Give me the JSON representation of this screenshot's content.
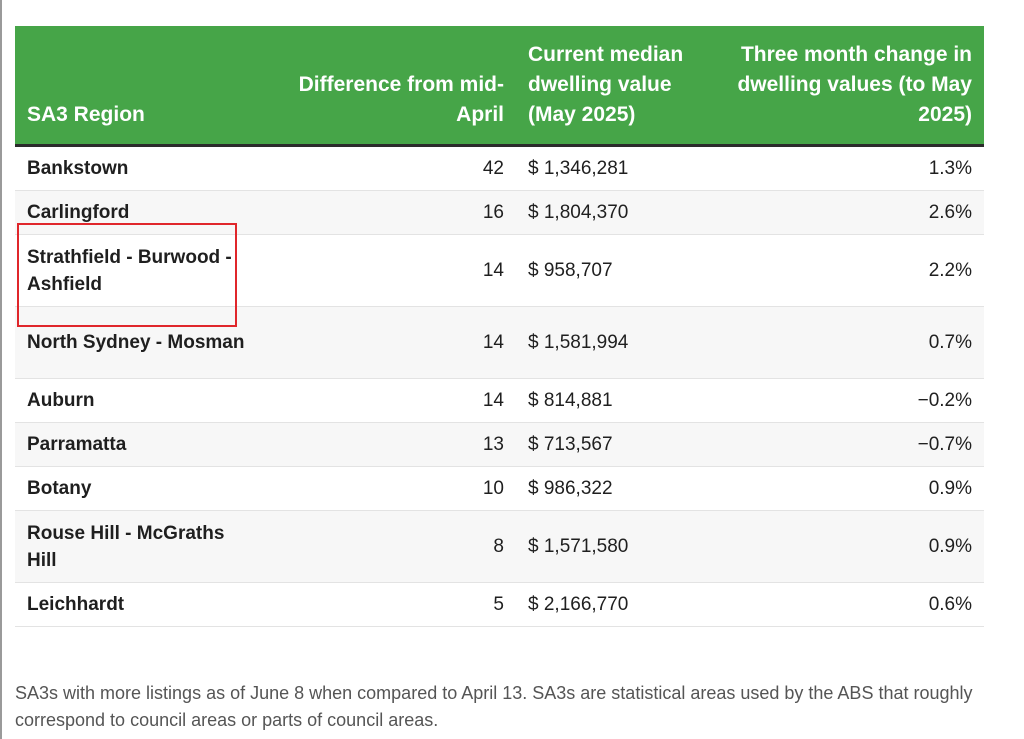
{
  "table": {
    "headers": {
      "region": "SA3 Region",
      "difference": "Difference from mid-April",
      "median": "Current median dwelling value (May 2025)",
      "change": "Three month change in dwelling values (to May 2025)"
    },
    "rows": [
      {
        "region": "Bankstown",
        "difference": "42",
        "median": "$ 1,346,281",
        "change": "1.3%"
      },
      {
        "region": "Carlingford",
        "difference": "16",
        "median": "$ 1,804,370",
        "change": "2.6%"
      },
      {
        "region": "Strathfield - Burwood - Ashfield",
        "difference": "14",
        "median": "$ 958,707",
        "change": "2.2%"
      },
      {
        "region": "North Sydney - Mosman",
        "difference": "14",
        "median": "$ 1,581,994",
        "change": "0.7%"
      },
      {
        "region": "Auburn",
        "difference": "14",
        "median": "$ 814,881",
        "change": "−0.2%"
      },
      {
        "region": "Parramatta",
        "difference": "13",
        "median": "$ 713,567",
        "change": "−0.7%"
      },
      {
        "region": "Botany",
        "difference": "10",
        "median": "$ 986,322",
        "change": "0.9%"
      },
      {
        "region": "Rouse Hill - McGraths Hill",
        "difference": "8",
        "median": "$ 1,571,580",
        "change": "0.9%"
      },
      {
        "region": "Leichhardt",
        "difference": "5",
        "median": "$ 2,166,770",
        "change": "0.6%"
      }
    ]
  },
  "caption": "SA3s with more listings as of June 8 when compared to April 13. SA3s are statistical areas used by the ABS that roughly correspond to council areas or parts of council areas.",
  "colors": {
    "header_bg": "#46a548",
    "header_text": "#ffffff",
    "highlight_border": "#e0262b"
  }
}
